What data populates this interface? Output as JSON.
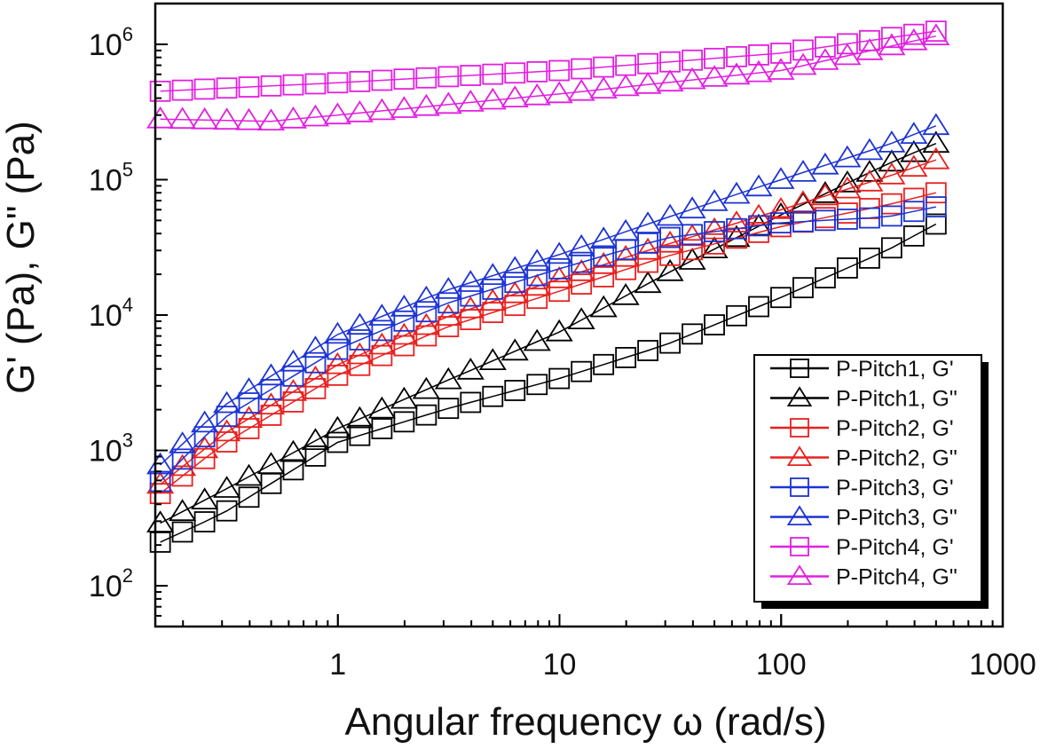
{
  "chart_data": {
    "type": "scatter",
    "title": "",
    "xlabel": "Angular frequency ω (rad/s)",
    "ylabel": "G' (Pa), G\" (Pa)",
    "xscale": "log",
    "yscale": "log",
    "xlim": [
      0.15,
      1000
    ],
    "ylim": [
      50,
      2000000
    ],
    "x_ticks": [
      {
        "value": 1,
        "label": "1"
      },
      {
        "value": 10,
        "label": "10"
      },
      {
        "value": 100,
        "label": "100"
      },
      {
        "value": 1000,
        "label": "1000"
      }
    ],
    "y_ticks": [
      {
        "value": 100,
        "base": "10",
        "exp": "2"
      },
      {
        "value": 1000,
        "base": "10",
        "exp": "3"
      },
      {
        "value": 10000,
        "base": "10",
        "exp": "4"
      },
      {
        "value": 100000,
        "base": "10",
        "exp": "5"
      },
      {
        "value": 1000000,
        "base": "10",
        "exp": "6"
      }
    ],
    "legend_position": "bottom-right",
    "x_range": [
      0.158,
      500
    ],
    "points_per_series": 36,
    "series": [
      {
        "name": "P-Pitch1, G'",
        "marker": "square",
        "color": "#000000",
        "anchors": [
          [
            0.158,
            210
          ],
          [
            0.3,
            340
          ],
          [
            1,
            1150
          ],
          [
            3,
            2000
          ],
          [
            10,
            3400
          ],
          [
            30,
            6000
          ],
          [
            100,
            13500
          ],
          [
            300,
            30000
          ],
          [
            500,
            47000
          ]
        ]
      },
      {
        "name": "P-Pitch1, G\"",
        "marker": "triangle",
        "color": "#000000",
        "anchors": [
          [
            0.158,
            290
          ],
          [
            0.3,
            500
          ],
          [
            1,
            1450
          ],
          [
            3,
            3200
          ],
          [
            10,
            7500
          ],
          [
            30,
            20000
          ],
          [
            100,
            55000
          ],
          [
            300,
            130000
          ],
          [
            500,
            185000
          ]
        ]
      },
      {
        "name": "P-Pitch2, G'",
        "marker": "square",
        "color": "#e8201e",
        "anchors": [
          [
            0.158,
            480
          ],
          [
            0.3,
            1100
          ],
          [
            1,
            3600
          ],
          [
            3,
            8000
          ],
          [
            10,
            15000
          ],
          [
            30,
            27000
          ],
          [
            100,
            45000
          ],
          [
            300,
            65000
          ],
          [
            500,
            80000
          ]
        ]
      },
      {
        "name": "P-Pitch2, G\"",
        "marker": "triangle",
        "color": "#e8201e",
        "anchors": [
          [
            0.158,
            560
          ],
          [
            0.3,
            1300
          ],
          [
            1,
            4300
          ],
          [
            3,
            9500
          ],
          [
            10,
            18500
          ],
          [
            30,
            33000
          ],
          [
            100,
            60000
          ],
          [
            300,
            105000
          ],
          [
            500,
            140000
          ]
        ]
      },
      {
        "name": "P-Pitch3, G'",
        "marker": "square",
        "color": "#1c33d4",
        "anchors": [
          [
            0.158,
            590
          ],
          [
            0.3,
            1700
          ],
          [
            1,
            5600
          ],
          [
            3,
            12000
          ],
          [
            10,
            22000
          ],
          [
            30,
            37000
          ],
          [
            100,
            48000
          ],
          [
            300,
            53000
          ],
          [
            500,
            63000
          ]
        ]
      },
      {
        "name": "P-Pitch3, G\"",
        "marker": "triangle",
        "color": "#1c33d4",
        "anchors": [
          [
            0.158,
            780
          ],
          [
            0.3,
            2100
          ],
          [
            1,
            7200
          ],
          [
            3,
            15000
          ],
          [
            10,
            28000
          ],
          [
            30,
            52000
          ],
          [
            100,
            100000
          ],
          [
            300,
            180000
          ],
          [
            500,
            250000
          ]
        ]
      },
      {
        "name": "P-Pitch4, G'",
        "marker": "square",
        "color": "#e21fe0",
        "anchors": [
          [
            0.158,
            450000
          ],
          [
            1,
            520000
          ],
          [
            10,
            640000
          ],
          [
            100,
            860000
          ],
          [
            500,
            1250000
          ]
        ]
      },
      {
        "name": "P-Pitch4, G\"",
        "marker": "triangle",
        "color": "#e21fe0",
        "anchors": [
          [
            0.158,
            280000
          ],
          [
            0.5,
            270000
          ],
          [
            1,
            300000
          ],
          [
            10,
            430000
          ],
          [
            100,
            640000
          ],
          [
            500,
            1150000
          ]
        ]
      }
    ]
  }
}
